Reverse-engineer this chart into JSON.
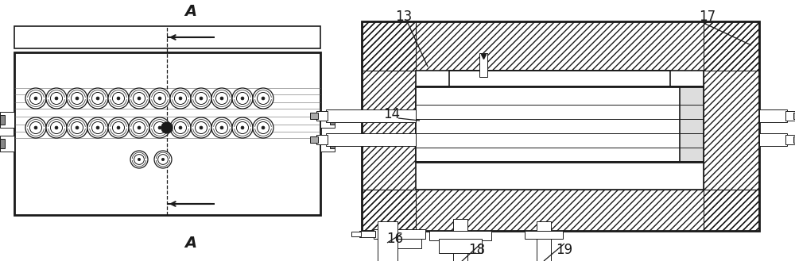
{
  "bg_color": "#ffffff",
  "line_color": "#1a1a1a",
  "labels": {
    "A_top": "A",
    "A_bot": "A",
    "n13": "13",
    "n14": "14",
    "n16": "16",
    "n17": "17",
    "n18": "18",
    "n19": "19"
  },
  "figsize": [
    10.0,
    3.29
  ],
  "dpi": 100
}
